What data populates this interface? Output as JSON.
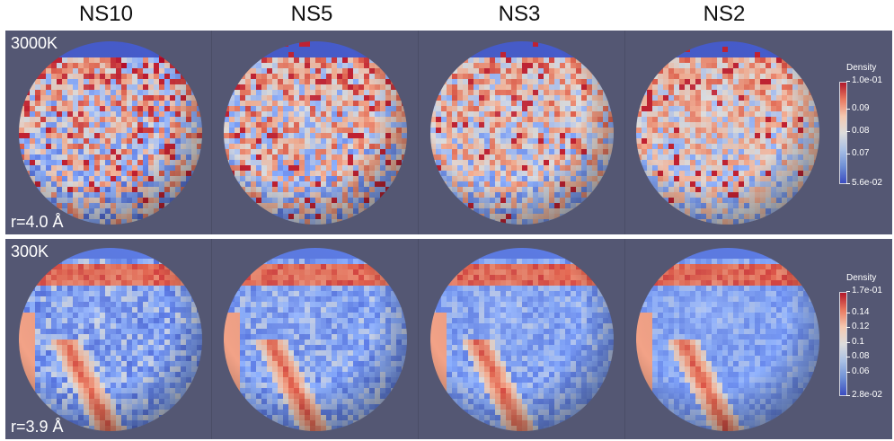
{
  "columns": [
    "NS10",
    "NS5",
    "NS3",
    "NS2"
  ],
  "rows": [
    {
      "temperature": "3000K",
      "radius": "r=4.0 Å",
      "colorbar": {
        "title": "Density",
        "ticks": [
          "1.0e-01",
          "0.09",
          "0.08",
          "0.07",
          "5.6e-02"
        ],
        "tick_values": [
          0.1,
          0.09,
          0.08,
          0.07,
          0.056
        ],
        "range": [
          0.056,
          0.1
        ]
      }
    },
    {
      "temperature": "300K",
      "radius": "r=3.9 Å",
      "colorbar": {
        "title": "Density",
        "ticks": [
          "1.7e-01",
          "0.14",
          "0.12",
          "0.1",
          "0.08",
          "0.06",
          "2.8e-02"
        ],
        "tick_values": [
          0.17,
          0.14,
          0.12,
          0.1,
          0.08,
          0.06,
          0.028
        ],
        "range": [
          0.028,
          0.17
        ]
      }
    }
  ]
}
